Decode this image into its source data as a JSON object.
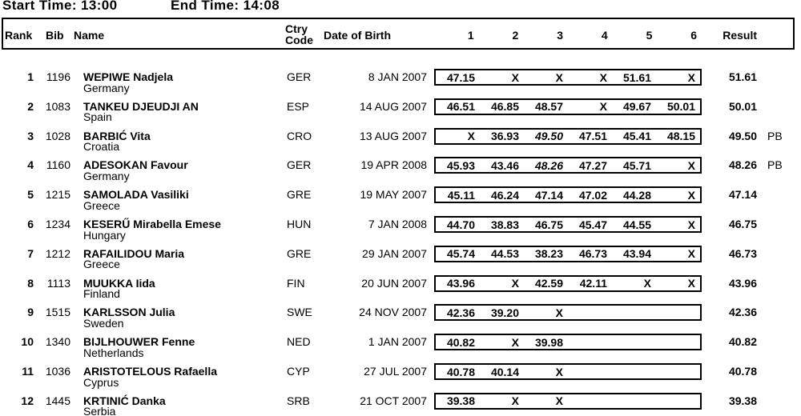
{
  "times": {
    "start_label": "Start Time:",
    "start_value": "13:00",
    "end_label": "End Time:",
    "end_value": "14:08"
  },
  "table": {
    "columns": {
      "rank": "Rank",
      "bib": "Bib",
      "name": "Name",
      "ctry_line1": "Ctry",
      "ctry_line2": "Code",
      "dob": "Date of Birth",
      "attempts": [
        "1",
        "2",
        "3",
        "4",
        "5",
        "6"
      ],
      "result": "Result"
    },
    "rows": [
      {
        "rank": "1",
        "bib": "1196",
        "name": "WEPIWE Nadjela",
        "country": "Germany",
        "ctry": "GER",
        "dob": "8 JAN 2007",
        "attempts": [
          {
            "text": "47.15"
          },
          {
            "text": "X"
          },
          {
            "text": "X"
          },
          {
            "text": "X"
          },
          {
            "text": "51.61"
          },
          {
            "text": "X"
          }
        ],
        "result": "51.61",
        "note": ""
      },
      {
        "rank": "2",
        "bib": "1083",
        "name": "TANKEU DJEUDJI AN",
        "country": "Spain",
        "ctry": "ESP",
        "dob": "14 AUG 2007",
        "attempts": [
          {
            "text": "46.51"
          },
          {
            "text": "46.85"
          },
          {
            "text": "48.57"
          },
          {
            "text": "X"
          },
          {
            "text": "49.67"
          },
          {
            "text": "50.01"
          }
        ],
        "result": "50.01",
        "note": ""
      },
      {
        "rank": "3",
        "bib": "1028",
        "name": "BARBIĆ Vita",
        "country": "Croatia",
        "ctry": "CRO",
        "dob": "13 AUG 2007",
        "attempts": [
          {
            "text": "X"
          },
          {
            "text": "36.93"
          },
          {
            "text": "49.50",
            "italic": true
          },
          {
            "text": "47.51"
          },
          {
            "text": "45.41"
          },
          {
            "text": "48.15"
          }
        ],
        "result": "49.50",
        "note": "PB"
      },
      {
        "rank": "4",
        "bib": "1160",
        "name": "ADESOKAN Favour",
        "country": "Germany",
        "ctry": "GER",
        "dob": "19 APR 2008",
        "attempts": [
          {
            "text": "45.93"
          },
          {
            "text": "43.46"
          },
          {
            "text": "48.26",
            "italic": true
          },
          {
            "text": "47.27"
          },
          {
            "text": "45.71"
          },
          {
            "text": "X"
          }
        ],
        "result": "48.26",
        "note": "PB"
      },
      {
        "rank": "5",
        "bib": "1215",
        "name": "SAMOLADA Vasiliki",
        "country": "Greece",
        "ctry": "GRE",
        "dob": "19 MAY 2007",
        "attempts": [
          {
            "text": "45.11"
          },
          {
            "text": "46.24"
          },
          {
            "text": "47.14"
          },
          {
            "text": "47.02"
          },
          {
            "text": "44.28"
          },
          {
            "text": "X"
          }
        ],
        "result": "47.14",
        "note": ""
      },
      {
        "rank": "6",
        "bib": "1234",
        "name": "KESERŰ Mirabella Emese",
        "country": "Hungary",
        "ctry": "HUN",
        "dob": "7 JAN 2008",
        "attempts": [
          {
            "text": "44.70"
          },
          {
            "text": "38.83"
          },
          {
            "text": "46.75"
          },
          {
            "text": "45.47"
          },
          {
            "text": "44.55"
          },
          {
            "text": "X"
          }
        ],
        "result": "46.75",
        "note": ""
      },
      {
        "rank": "7",
        "bib": "1212",
        "name": "RAFAILIDOU Maria",
        "country": "Greece",
        "ctry": "GRE",
        "dob": "29 JAN 2007",
        "attempts": [
          {
            "text": "45.74"
          },
          {
            "text": "44.53"
          },
          {
            "text": "38.23"
          },
          {
            "text": "46.73"
          },
          {
            "text": "43.94"
          },
          {
            "text": "X"
          }
        ],
        "result": "46.73",
        "note": ""
      },
      {
        "rank": "8",
        "bib": "1113",
        "name": "MUUKKA Iida",
        "country": "Finland",
        "ctry": "FIN",
        "dob": "20 JUN 2007",
        "attempts": [
          {
            "text": "43.96"
          },
          {
            "text": "X"
          },
          {
            "text": "42.59"
          },
          {
            "text": "42.11"
          },
          {
            "text": "X"
          },
          {
            "text": "X"
          }
        ],
        "result": "43.96",
        "note": ""
      },
      {
        "rank": "9",
        "bib": "1515",
        "name": "KARLSSON Julia",
        "country": "Sweden",
        "ctry": "SWE",
        "dob": "24 NOV 2007",
        "attempts": [
          {
            "text": "42.36"
          },
          {
            "text": "39.20"
          },
          {
            "text": "X"
          },
          {
            "text": ""
          },
          {
            "text": ""
          },
          {
            "text": ""
          }
        ],
        "result": "42.36",
        "note": ""
      },
      {
        "rank": "10",
        "bib": "1340",
        "name": "BIJLHOUWER Fenne",
        "country": "Netherlands",
        "ctry": "NED",
        "dob": "1 JAN 2007",
        "attempts": [
          {
            "text": "40.82"
          },
          {
            "text": "X"
          },
          {
            "text": "39.98"
          },
          {
            "text": ""
          },
          {
            "text": ""
          },
          {
            "text": ""
          }
        ],
        "result": "40.82",
        "note": ""
      },
      {
        "rank": "11",
        "bib": "1036",
        "name": "ARISTOTELOUS Rafaella",
        "country": "Cyprus",
        "ctry": "CYP",
        "dob": "27 JUL 2007",
        "attempts": [
          {
            "text": "40.78"
          },
          {
            "text": "40.14"
          },
          {
            "text": "X"
          },
          {
            "text": ""
          },
          {
            "text": ""
          },
          {
            "text": ""
          }
        ],
        "result": "40.78",
        "note": ""
      },
      {
        "rank": "12",
        "bib": "1445",
        "name": "KRTINIĆ Danka",
        "country": "Serbia",
        "ctry": "SRB",
        "dob": "21 OCT 2007",
        "attempts": [
          {
            "text": "39.38"
          },
          {
            "text": "X"
          },
          {
            "text": "X"
          },
          {
            "text": ""
          },
          {
            "text": ""
          },
          {
            "text": ""
          }
        ],
        "result": "39.38",
        "note": ""
      }
    ]
  }
}
